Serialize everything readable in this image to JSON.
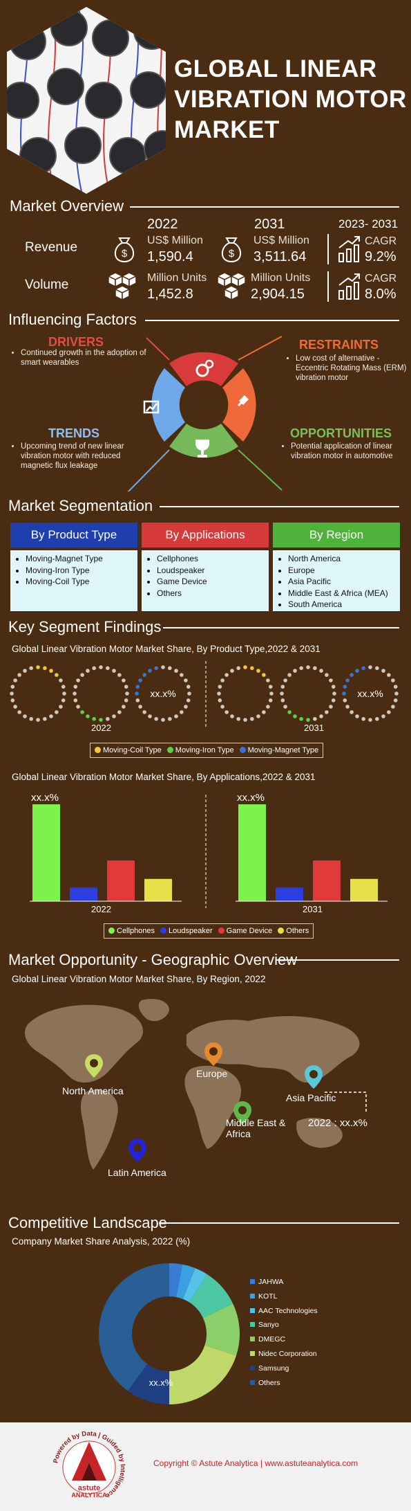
{
  "header": {
    "title": "GLOBAL LINEAR VIBRATION MOTOR MARKET"
  },
  "overview": {
    "section_title": "Market Overview",
    "year_a": "2022",
    "year_b": "2031",
    "cagr_period": "2023- 2031",
    "revenue": {
      "label": "Revenue",
      "unit": "US$ Million",
      "value_a": "1,590.4",
      "value_b": "3,511.64",
      "cagr_label": "CAGR",
      "cagr": "9.2%"
    },
    "volume": {
      "label": "Volume",
      "unit": "Million Units",
      "value_a": "1,452.8",
      "value_b": "2,904.15",
      "cagr_label": "CAGR",
      "cagr": "8.0%"
    }
  },
  "factors": {
    "section_title": "Influencing Factors",
    "drivers": {
      "title": "DRIVERS",
      "text": "Continued growth in the adoption of smart wearables"
    },
    "restraints": {
      "title": "RESTRAINTS",
      "text": "Low cost of alternative - Eccentric Rotating Mass (ERM) vibration motor"
    },
    "trends": {
      "title": "TRENDS",
      "text": "Upcoming trend of new linear vibration motor with reduced magnetic flux leakage"
    },
    "opportunities": {
      "title": "OPPORTUNITIES",
      "text": "Potential application of linear vibration motor in automotive"
    }
  },
  "segmentation": {
    "section_title": "Market Segmentation",
    "columns": [
      {
        "title": "By Product Type",
        "color": "#1f3fae",
        "items": [
          "Moving-Magnet Type",
          "Moving-Iron Type",
          "Moving-Coil Type"
        ]
      },
      {
        "title": "By Applications",
        "color": "#d63a3a",
        "items": [
          "Cellphones",
          "Loudspeaker",
          "Game Device",
          "Others"
        ]
      },
      {
        "title": "By Region",
        "color": "#4fb33b",
        "items": [
          "North America",
          "Europe",
          "Asia Pacific",
          "Middle East & Africa (MEA)",
          "South America"
        ]
      }
    ]
  },
  "findings": {
    "section_title": "Key Segment Findings",
    "product_title": "Global Linear Vibration Motor Market Share, By Product Type,2022 & 2031",
    "product_value_label": "xx.x%",
    "product_year_a": "2022",
    "product_year_b": "2031",
    "product_legend": [
      {
        "name": "Moving-Coil Type",
        "color": "#f4c63b"
      },
      {
        "name": "Moving-Iron Type",
        "color": "#5fcf4a"
      },
      {
        "name": "Moving-Magnet Type",
        "color": "#3b74d6"
      }
    ],
    "app_title": "Global Linear Vibration Motor Market Share, By Applications,2022 & 2031",
    "app_value_label": "xx.x%",
    "app_year_a": "2022",
    "app_year_b": "2031",
    "app_legend": [
      {
        "name": "Cellphones",
        "color": "#7ef24a"
      },
      {
        "name": "Loudspeaker",
        "color": "#2b3fe0"
      },
      {
        "name": "Game Device",
        "color": "#e03a3a"
      },
      {
        "name": "Others",
        "color": "#e6e04a"
      }
    ]
  },
  "chart_data": {
    "type": "bar",
    "categories": [
      "Cellphones",
      "Loudspeaker",
      "Game Device",
      "Others"
    ],
    "series": [
      {
        "name": "2022",
        "values": [
          100,
          14,
          42,
          23
        ]
      },
      {
        "name": "2031",
        "values": [
          100,
          14,
          42,
          23
        ]
      }
    ],
    "ylim": [
      0,
      100
    ]
  },
  "geo": {
    "section_title": "Market Opportunity - Geographic Overview",
    "subtitle": "Global Linear Vibration Motor Market Share, By Region, 2022",
    "regions": [
      {
        "name": "North America",
        "color": "#c9dd62"
      },
      {
        "name": "Europe",
        "color": "#e58a2e"
      },
      {
        "name": "Asia Pacific",
        "color": "#5ac8d8"
      },
      {
        "name": "Middle East & Africa",
        "color": "#5fb84a"
      },
      {
        "name": "Latin America",
        "color": "#2323d8"
      }
    ],
    "callout": "2022 : xx.x%"
  },
  "competitive": {
    "section_title": "Competitive Landscape",
    "subtitle": "Company Market Share Analysis, 2022 (%)",
    "center_label": "xx.x%",
    "legend": [
      {
        "name": "JAHWA",
        "color": "#3a7bd5"
      },
      {
        "name": "KOTL",
        "color": "#3aa0e0"
      },
      {
        "name": "AAC Technologies",
        "color": "#56c2e8"
      },
      {
        "name": "Sanyo",
        "color": "#4cc7a3"
      },
      {
        "name": "DMEGC",
        "color": "#8bcf6a"
      },
      {
        "name": "Nidec Corporation",
        "color": "#c0d86a"
      },
      {
        "name": "Samsung",
        "color": "#1f3f82"
      },
      {
        "name": "Others",
        "color": "#2a5e96"
      }
    ]
  },
  "footer": {
    "copyright": "Copyright © Astute Analytica  |  www.astuteanalytica.com",
    "logo_ring": "Powered by Data | Guided by Intelligence",
    "logo_name": "astute",
    "logo_sub": "ANALYTICA"
  }
}
